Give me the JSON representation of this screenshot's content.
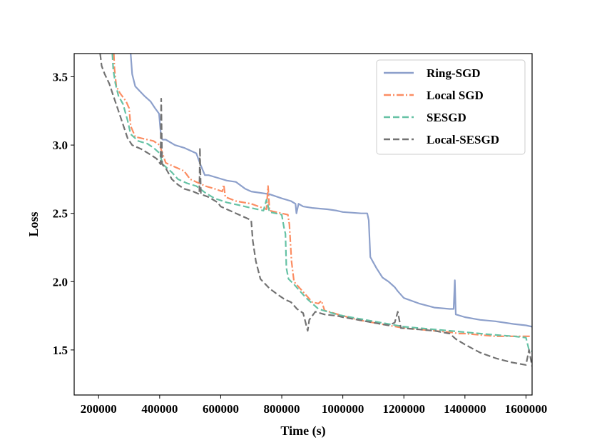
{
  "chart_data": {
    "type": "line",
    "title": "",
    "xlabel": "Time (s)",
    "ylabel": "Loss",
    "xlim": [
      120000,
      1620000
    ],
    "ylim": [
      1.17,
      3.67
    ],
    "xticks": [
      200000,
      400000,
      600000,
      800000,
      1000000,
      1200000,
      1400000,
      1600000
    ],
    "xtick_labels": [
      "200000",
      "400000",
      "600000",
      "800000",
      "1000000",
      "1200000",
      "1400000",
      "1600000"
    ],
    "yticks": [
      1.5,
      2.0,
      2.5,
      3.0,
      3.5
    ],
    "ytick_labels": [
      "1.5",
      "2.0",
      "2.5",
      "3.0",
      "3.5"
    ],
    "legend_position": "top-right",
    "series": [
      {
        "name": "Ring-SGD",
        "color": "#8da0cb",
        "dash": "solid",
        "points": [
          [
            305000,
            3.67
          ],
          [
            310000,
            3.52
          ],
          [
            320000,
            3.43
          ],
          [
            350000,
            3.36
          ],
          [
            370000,
            3.32
          ],
          [
            385000,
            3.27
          ],
          [
            398000,
            3.23
          ],
          [
            405000,
            3.05
          ],
          [
            410000,
            3.04
          ],
          [
            420000,
            3.04
          ],
          [
            450000,
            3.0
          ],
          [
            480000,
            2.98
          ],
          [
            520000,
            2.94
          ],
          [
            535000,
            2.85
          ],
          [
            548000,
            2.78
          ],
          [
            560000,
            2.78
          ],
          [
            590000,
            2.76
          ],
          [
            620000,
            2.74
          ],
          [
            650000,
            2.73
          ],
          [
            680000,
            2.68
          ],
          [
            700000,
            2.66
          ],
          [
            760000,
            2.64
          ],
          [
            800000,
            2.61
          ],
          [
            830000,
            2.59
          ],
          [
            845000,
            2.57
          ],
          [
            848000,
            2.5
          ],
          [
            855000,
            2.57
          ],
          [
            870000,
            2.55
          ],
          [
            900000,
            2.54
          ],
          [
            950000,
            2.53
          ],
          [
            980000,
            2.52
          ],
          [
            1000000,
            2.51
          ],
          [
            1060000,
            2.5
          ],
          [
            1080000,
            2.5
          ],
          [
            1085000,
            2.45
          ],
          [
            1090000,
            2.18
          ],
          [
            1110000,
            2.1
          ],
          [
            1130000,
            2.03
          ],
          [
            1150000,
            2.0
          ],
          [
            1170000,
            1.96
          ],
          [
            1180000,
            1.93
          ],
          [
            1200000,
            1.88
          ],
          [
            1250000,
            1.84
          ],
          [
            1300000,
            1.81
          ],
          [
            1350000,
            1.8
          ],
          [
            1363000,
            1.8
          ],
          [
            1367000,
            2.01
          ],
          [
            1370000,
            1.76
          ],
          [
            1400000,
            1.74
          ],
          [
            1450000,
            1.72
          ],
          [
            1500000,
            1.71
          ],
          [
            1560000,
            1.69
          ],
          [
            1600000,
            1.68
          ],
          [
            1620000,
            1.67
          ]
        ]
      },
      {
        "name": "Local SGD",
        "color": "#fc8d62",
        "dash": "dashdot",
        "points": [
          [
            250000,
            3.67
          ],
          [
            252000,
            3.56
          ],
          [
            258000,
            3.43
          ],
          [
            270000,
            3.38
          ],
          [
            290000,
            3.32
          ],
          [
            300000,
            3.27
          ],
          [
            305000,
            3.14
          ],
          [
            320000,
            3.06
          ],
          [
            360000,
            3.04
          ],
          [
            380000,
            3.03
          ],
          [
            400000,
            3.0
          ],
          [
            420000,
            2.87
          ],
          [
            450000,
            2.84
          ],
          [
            480000,
            2.81
          ],
          [
            490000,
            2.78
          ],
          [
            500000,
            2.75
          ],
          [
            520000,
            2.73
          ],
          [
            550000,
            2.7
          ],
          [
            580000,
            2.68
          ],
          [
            605000,
            2.66
          ],
          [
            610000,
            2.71
          ],
          [
            615000,
            2.62
          ],
          [
            650000,
            2.59
          ],
          [
            700000,
            2.57
          ],
          [
            750000,
            2.53
          ],
          [
            755000,
            2.7
          ],
          [
            760000,
            2.52
          ],
          [
            800000,
            2.5
          ],
          [
            820000,
            2.49
          ],
          [
            825000,
            2.42
          ],
          [
            832000,
            2.15
          ],
          [
            840000,
            2.0
          ],
          [
            860000,
            1.95
          ],
          [
            880000,
            1.9
          ],
          [
            900000,
            1.85
          ],
          [
            920000,
            1.84
          ],
          [
            930000,
            1.86
          ],
          [
            940000,
            1.79
          ],
          [
            970000,
            1.77
          ],
          [
            1000000,
            1.75
          ],
          [
            1050000,
            1.72
          ],
          [
            1100000,
            1.7
          ],
          [
            1150000,
            1.68
          ],
          [
            1200000,
            1.66
          ],
          [
            1250000,
            1.65
          ],
          [
            1300000,
            1.64
          ],
          [
            1350000,
            1.63
          ],
          [
            1380000,
            1.62
          ],
          [
            1400000,
            1.62
          ],
          [
            1450000,
            1.61
          ],
          [
            1500000,
            1.6
          ],
          [
            1550000,
            1.6
          ],
          [
            1620000,
            1.6
          ]
        ]
      },
      {
        "name": "SESGD",
        "color": "#66c2a5",
        "dash": "dashed",
        "points": [
          [
            245000,
            3.67
          ],
          [
            248000,
            3.55
          ],
          [
            255000,
            3.45
          ],
          [
            265000,
            3.36
          ],
          [
            280000,
            3.3
          ],
          [
            295000,
            3.18
          ],
          [
            305000,
            3.08
          ],
          [
            330000,
            3.03
          ],
          [
            360000,
            3.01
          ],
          [
            380000,
            2.98
          ],
          [
            400000,
            2.94
          ],
          [
            410000,
            2.86
          ],
          [
            440000,
            2.8
          ],
          [
            460000,
            2.75
          ],
          [
            490000,
            2.72
          ],
          [
            520000,
            2.7
          ],
          [
            550000,
            2.65
          ],
          [
            580000,
            2.61
          ],
          [
            620000,
            2.58
          ],
          [
            660000,
            2.56
          ],
          [
            700000,
            2.54
          ],
          [
            740000,
            2.52
          ],
          [
            750000,
            2.6
          ],
          [
            760000,
            2.51
          ],
          [
            780000,
            2.5
          ],
          [
            800000,
            2.49
          ],
          [
            807000,
            2.4
          ],
          [
            812000,
            2.35
          ],
          [
            815000,
            2.1
          ],
          [
            822000,
            2.02
          ],
          [
            840000,
            1.98
          ],
          [
            860000,
            1.93
          ],
          [
            880000,
            1.88
          ],
          [
            900000,
            1.84
          ],
          [
            920000,
            1.8
          ],
          [
            950000,
            1.78
          ],
          [
            980000,
            1.76
          ],
          [
            1000000,
            1.75
          ],
          [
            1050000,
            1.73
          ],
          [
            1100000,
            1.71
          ],
          [
            1150000,
            1.69
          ],
          [
            1200000,
            1.67
          ],
          [
            1250000,
            1.66
          ],
          [
            1300000,
            1.65
          ],
          [
            1350000,
            1.64
          ],
          [
            1400000,
            1.63
          ],
          [
            1450000,
            1.62
          ],
          [
            1500000,
            1.61
          ],
          [
            1560000,
            1.6
          ],
          [
            1600000,
            1.59
          ],
          [
            1610000,
            1.5
          ],
          [
            1620000,
            1.49
          ]
        ]
      },
      {
        "name": "Local-SESGD",
        "color": "#737373",
        "dash": "dashed",
        "points": [
          [
            205000,
            3.67
          ],
          [
            210000,
            3.58
          ],
          [
            220000,
            3.52
          ],
          [
            235000,
            3.45
          ],
          [
            250000,
            3.35
          ],
          [
            265000,
            3.25
          ],
          [
            280000,
            3.15
          ],
          [
            295000,
            3.05
          ],
          [
            310000,
            3.0
          ],
          [
            340000,
            2.97
          ],
          [
            370000,
            2.93
          ],
          [
            390000,
            2.9
          ],
          [
            403000,
            2.86
          ],
          [
            405000,
            3.34
          ],
          [
            408000,
            2.86
          ],
          [
            420000,
            2.83
          ],
          [
            440000,
            2.75
          ],
          [
            460000,
            2.71
          ],
          [
            480000,
            2.68
          ],
          [
            510000,
            2.66
          ],
          [
            530000,
            2.64
          ],
          [
            532000,
            2.98
          ],
          [
            535000,
            2.64
          ],
          [
            560000,
            2.62
          ],
          [
            590000,
            2.58
          ],
          [
            600000,
            2.55
          ],
          [
            630000,
            2.52
          ],
          [
            660000,
            2.49
          ],
          [
            690000,
            2.46
          ],
          [
            700000,
            2.45
          ],
          [
            705000,
            2.3
          ],
          [
            715000,
            2.15
          ],
          [
            730000,
            2.02
          ],
          [
            760000,
            1.95
          ],
          [
            790000,
            1.9
          ],
          [
            810000,
            1.87
          ],
          [
            830000,
            1.85
          ],
          [
            850000,
            1.8
          ],
          [
            870000,
            1.77
          ],
          [
            885000,
            1.64
          ],
          [
            890000,
            1.72
          ],
          [
            910000,
            1.78
          ],
          [
            940000,
            1.76
          ],
          [
            980000,
            1.75
          ],
          [
            1000000,
            1.74
          ],
          [
            1050000,
            1.72
          ],
          [
            1100000,
            1.7
          ],
          [
            1150000,
            1.68
          ],
          [
            1170000,
            1.7
          ],
          [
            1180000,
            1.78
          ],
          [
            1190000,
            1.66
          ],
          [
            1250000,
            1.65
          ],
          [
            1300000,
            1.64
          ],
          [
            1350000,
            1.62
          ],
          [
            1370000,
            1.58
          ],
          [
            1400000,
            1.54
          ],
          [
            1450000,
            1.48
          ],
          [
            1500000,
            1.44
          ],
          [
            1550000,
            1.41
          ],
          [
            1600000,
            1.39
          ],
          [
            1610000,
            1.5
          ],
          [
            1620000,
            1.38
          ]
        ]
      }
    ]
  }
}
